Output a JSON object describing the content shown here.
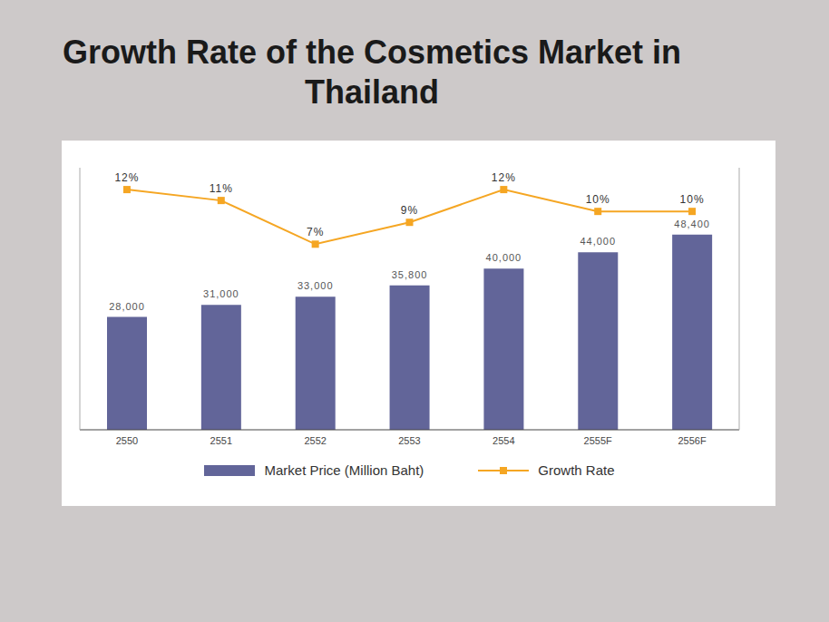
{
  "chart_data": {
    "type": "bar",
    "title": "Growth Rate of the Cosmetics Market in Thailand",
    "categories": [
      "2550",
      "2551",
      "2552",
      "2553",
      "2554",
      "2555F",
      "2556F"
    ],
    "series": [
      {
        "name": "Market Price (Million Baht)",
        "type": "bar",
        "color": "#626599",
        "values": [
          28000,
          31000,
          33000,
          35800,
          40000,
          44000,
          48400
        ],
        "value_labels": [
          "28,000",
          "31,000",
          "33,000",
          "35,800",
          "40,000",
          "44,000",
          "48,400"
        ]
      },
      {
        "name": "Growth Rate",
        "type": "line",
        "axis": "y2",
        "color": "#f5a623",
        "marker": "square",
        "line_style": "solid",
        "values": [
          12,
          11,
          7,
          9,
          12,
          10,
          10
        ],
        "value_labels": [
          "12%",
          "11%",
          "7%",
          "9%",
          "12%",
          "10%",
          "10%"
        ]
      }
    ],
    "ylim": [
      0,
      65000
    ],
    "y2lim": [
      -10,
      14
    ],
    "data_labels": true,
    "tick_labels": "x",
    "grid": false,
    "legend": "bottom"
  }
}
